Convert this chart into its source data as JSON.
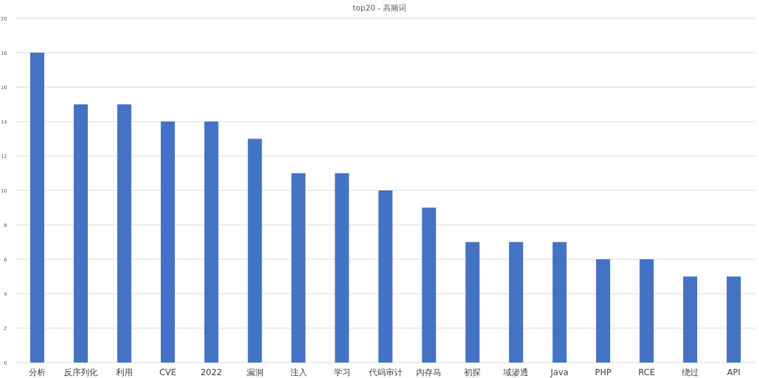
{
  "chart_data": {
    "type": "bar",
    "title": "top20 - 高频词",
    "categories": [
      "分析",
      "反序列化",
      "利用",
      "CVE",
      "2022",
      "漏洞",
      "注入",
      "学习",
      "代码审计",
      "内存马",
      "初探",
      "域渗透",
      "Java",
      "PHP",
      "RCE",
      "绕过",
      "API"
    ],
    "values": [
      18,
      15,
      15,
      14,
      14,
      13,
      11,
      11,
      10,
      9,
      7,
      7,
      7,
      6,
      6,
      5,
      5
    ],
    "color": "#4472c4",
    "ylim": [
      0,
      20
    ],
    "yticks": [
      0,
      2,
      4,
      6,
      8,
      10,
      12,
      14,
      16,
      18,
      20
    ],
    "grid": "y"
  }
}
